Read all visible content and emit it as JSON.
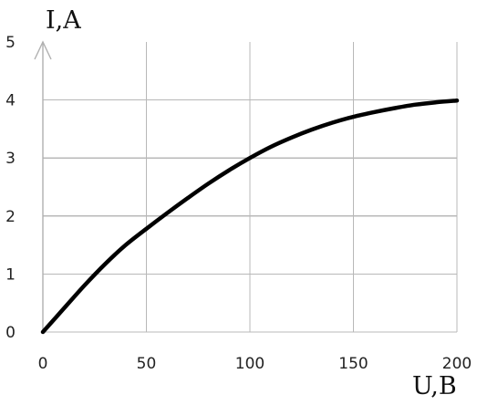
{
  "chart_data": {
    "type": "line",
    "title": "",
    "xlabel": "U,B",
    "ylabel": "I,A",
    "xlim": [
      0,
      200
    ],
    "ylim": [
      0,
      5
    ],
    "x_ticks": [
      0,
      50,
      100,
      150,
      200
    ],
    "y_ticks": [
      0,
      1,
      2,
      3,
      4,
      5
    ],
    "grid": true,
    "legend": "none",
    "series": [
      {
        "color": "#000000",
        "x": [
          0,
          10,
          20,
          30,
          40,
          50,
          60,
          70,
          80,
          90,
          100,
          110,
          120,
          130,
          140,
          150,
          160,
          170,
          180,
          190,
          200
        ],
        "y": [
          0,
          0.4,
          0.8,
          1.17,
          1.5,
          1.78,
          2.05,
          2.31,
          2.56,
          2.79,
          3.0,
          3.19,
          3.35,
          3.49,
          3.61,
          3.71,
          3.79,
          3.86,
          3.92,
          3.96,
          3.99
        ]
      }
    ]
  }
}
